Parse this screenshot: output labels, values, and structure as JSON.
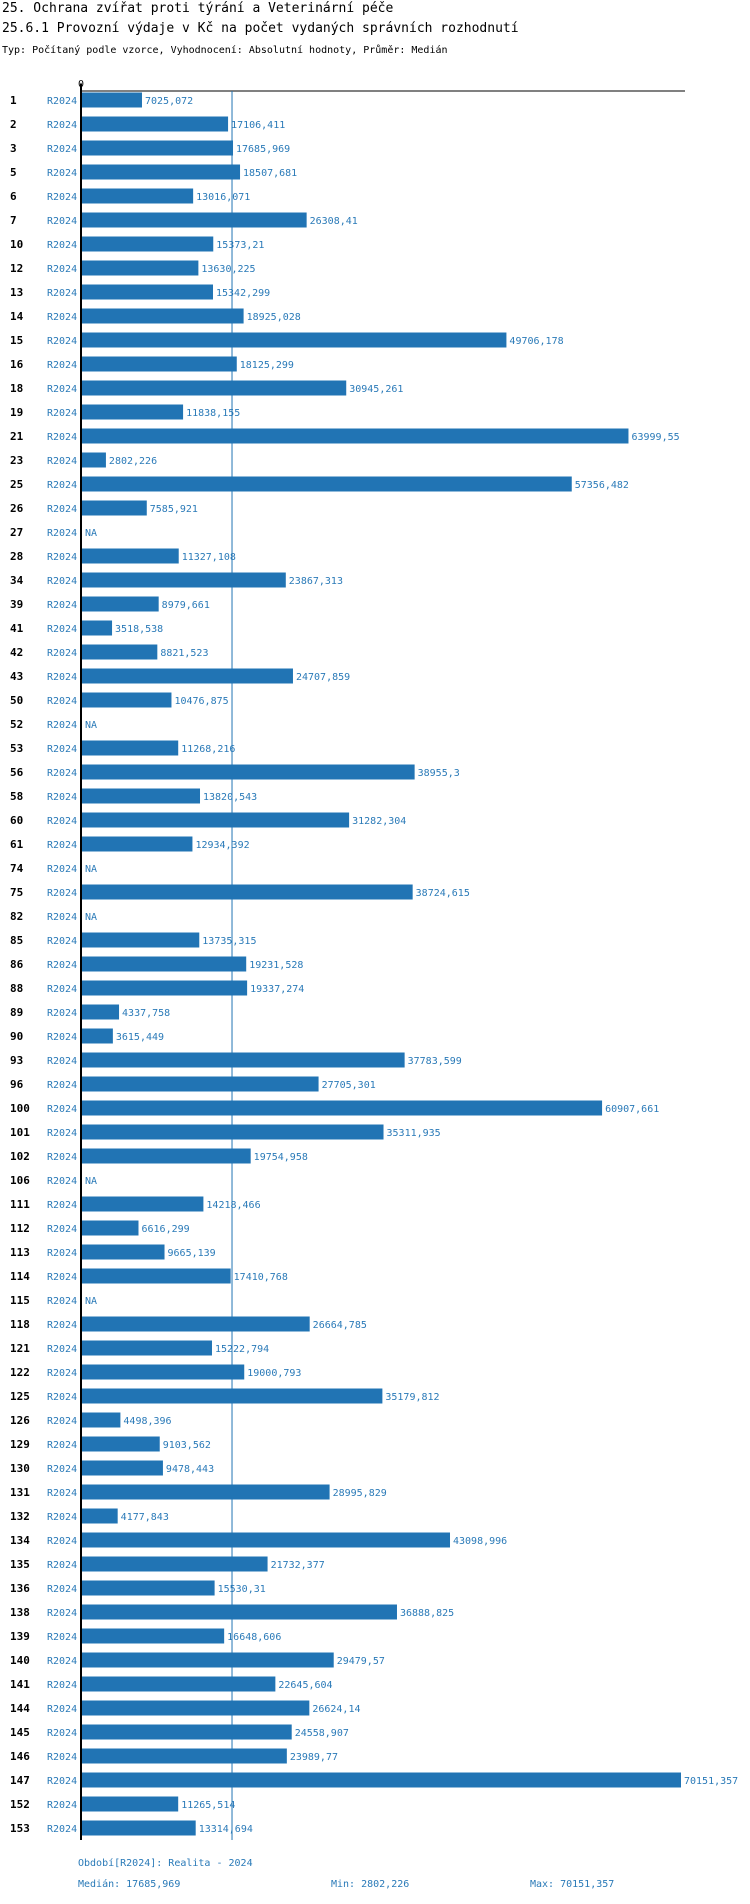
{
  "header": {
    "title1": "25. Ochrana zvířat proti týrání a Veterinární péče",
    "title2": "25.6.1 Provozní výdaje v Kč na počet vydaných správních rozhodnutí",
    "subtitle": "Typ: Počítaný podle vzorce, Vyhodnocení: Absolutní hodnoty, Průměr: Medián"
  },
  "colors": {
    "bar": "#2174b4",
    "text_blue": "#2a7ab8",
    "axis": "#000000"
  },
  "chart_data": {
    "type": "bar",
    "orientation": "horizontal",
    "axis_zero_label": "0",
    "xlim": [
      0,
      70151.357
    ],
    "median": 17685.969,
    "period": "R2024",
    "na_label": "NA",
    "rows": [
      {
        "id": "1",
        "value": 7025.072,
        "label": "7025,072"
      },
      {
        "id": "2",
        "value": 17106.411,
        "label": "17106,411"
      },
      {
        "id": "3",
        "value": 17685.969,
        "label": "17685,969"
      },
      {
        "id": "5",
        "value": 18507.681,
        "label": "18507,681"
      },
      {
        "id": "6",
        "value": 13016.071,
        "label": "13016,071"
      },
      {
        "id": "7",
        "value": 26308.41,
        "label": "26308,41"
      },
      {
        "id": "10",
        "value": 15373.21,
        "label": "15373,21"
      },
      {
        "id": "12",
        "value": 13630.225,
        "label": "13630,225"
      },
      {
        "id": "13",
        "value": 15342.299,
        "label": "15342,299"
      },
      {
        "id": "14",
        "value": 18925.028,
        "label": "18925,028"
      },
      {
        "id": "15",
        "value": 49706.178,
        "label": "49706,178"
      },
      {
        "id": "16",
        "value": 18125.299,
        "label": "18125,299"
      },
      {
        "id": "18",
        "value": 30945.261,
        "label": "30945,261"
      },
      {
        "id": "19",
        "value": 11838.155,
        "label": "11838,155"
      },
      {
        "id": "21",
        "value": 63999.55,
        "label": "63999,55"
      },
      {
        "id": "23",
        "value": 2802.226,
        "label": "2802,226"
      },
      {
        "id": "25",
        "value": 57356.482,
        "label": "57356,482"
      },
      {
        "id": "26",
        "value": 7585.921,
        "label": "7585,921"
      },
      {
        "id": "27",
        "value": null,
        "label": "NA"
      },
      {
        "id": "28",
        "value": 11327.108,
        "label": "11327,108"
      },
      {
        "id": "34",
        "value": 23867.313,
        "label": "23867,313"
      },
      {
        "id": "39",
        "value": 8979.661,
        "label": "8979,661"
      },
      {
        "id": "41",
        "value": 3518.538,
        "label": "3518,538"
      },
      {
        "id": "42",
        "value": 8821.523,
        "label": "8821,523"
      },
      {
        "id": "43",
        "value": 24707.859,
        "label": "24707,859"
      },
      {
        "id": "50",
        "value": 10476.875,
        "label": "10476,875"
      },
      {
        "id": "52",
        "value": null,
        "label": "NA"
      },
      {
        "id": "53",
        "value": 11268.216,
        "label": "11268,216"
      },
      {
        "id": "56",
        "value": 38955.3,
        "label": "38955,3"
      },
      {
        "id": "58",
        "value": 13820.543,
        "label": "13820,543"
      },
      {
        "id": "60",
        "value": 31282.304,
        "label": "31282,304"
      },
      {
        "id": "61",
        "value": 12934.392,
        "label": "12934,392"
      },
      {
        "id": "74",
        "value": null,
        "label": "NA"
      },
      {
        "id": "75",
        "value": 38724.615,
        "label": "38724,615"
      },
      {
        "id": "82",
        "value": null,
        "label": "NA"
      },
      {
        "id": "85",
        "value": 13735.315,
        "label": "13735,315"
      },
      {
        "id": "86",
        "value": 19231.528,
        "label": "19231,528"
      },
      {
        "id": "88",
        "value": 19337.274,
        "label": "19337,274"
      },
      {
        "id": "89",
        "value": 4337.758,
        "label": "4337,758"
      },
      {
        "id": "90",
        "value": 3615.449,
        "label": "3615,449"
      },
      {
        "id": "93",
        "value": 37783.599,
        "label": "37783,599"
      },
      {
        "id": "96",
        "value": 27705.301,
        "label": "27705,301"
      },
      {
        "id": "100",
        "value": 60907.661,
        "label": "60907,661"
      },
      {
        "id": "101",
        "value": 35311.935,
        "label": "35311,935"
      },
      {
        "id": "102",
        "value": 19754.958,
        "label": "19754,958"
      },
      {
        "id": "106",
        "value": null,
        "label": "NA"
      },
      {
        "id": "111",
        "value": 14218.466,
        "label": "14218,466"
      },
      {
        "id": "112",
        "value": 6616.299,
        "label": "6616,299"
      },
      {
        "id": "113",
        "value": 9665.139,
        "label": "9665,139"
      },
      {
        "id": "114",
        "value": 17410.768,
        "label": "17410,768"
      },
      {
        "id": "115",
        "value": null,
        "label": "NA"
      },
      {
        "id": "118",
        "value": 26664.785,
        "label": "26664,785"
      },
      {
        "id": "121",
        "value": 15222.794,
        "label": "15222,794"
      },
      {
        "id": "122",
        "value": 19000.793,
        "label": "19000,793"
      },
      {
        "id": "125",
        "value": 35179.812,
        "label": "35179,812"
      },
      {
        "id": "126",
        "value": 4498.396,
        "label": "4498,396"
      },
      {
        "id": "129",
        "value": 9103.562,
        "label": "9103,562"
      },
      {
        "id": "130",
        "value": 9478.443,
        "label": "9478,443"
      },
      {
        "id": "131",
        "value": 28995.829,
        "label": "28995,829"
      },
      {
        "id": "132",
        "value": 4177.843,
        "label": "4177,843"
      },
      {
        "id": "134",
        "value": 43098.996,
        "label": "43098,996"
      },
      {
        "id": "135",
        "value": 21732.377,
        "label": "21732,377"
      },
      {
        "id": "136",
        "value": 15530.31,
        "label": "15530,31"
      },
      {
        "id": "138",
        "value": 36888.825,
        "label": "36888,825"
      },
      {
        "id": "139",
        "value": 16648.606,
        "label": "16648,606"
      },
      {
        "id": "140",
        "value": 29479.57,
        "label": "29479,57"
      },
      {
        "id": "141",
        "value": 22645.604,
        "label": "22645,604"
      },
      {
        "id": "144",
        "value": 26624.14,
        "label": "26624,14"
      },
      {
        "id": "145",
        "value": 24558.907,
        "label": "24558,907"
      },
      {
        "id": "146",
        "value": 23989.77,
        "label": "23989,77"
      },
      {
        "id": "147",
        "value": 70151.357,
        "label": "70151,357"
      },
      {
        "id": "152",
        "value": 11265.514,
        "label": "11265,514"
      },
      {
        "id": "153",
        "value": 13314.694,
        "label": "13314,694"
      }
    ]
  },
  "footer": {
    "period_note": "Období[R2024]: Realita - 2024",
    "median_label": "Medián: 17685,969",
    "min_label": "Min: 2802,226",
    "max_label": "Max: 70151,357"
  }
}
